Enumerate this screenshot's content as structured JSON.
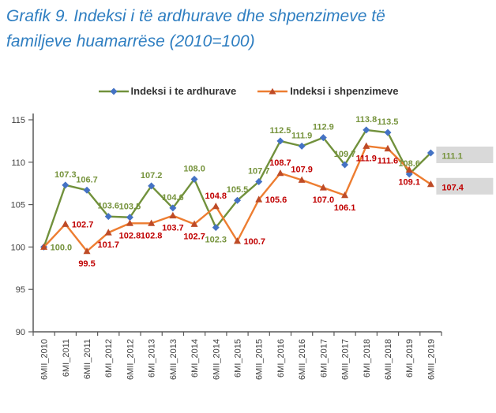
{
  "page": {
    "title": "Grafik 9. Indeksi i të ardhurave dhe shpenzimeve të familjeve huamarrëse (2010=100)",
    "title_color": "#2E7EC1"
  },
  "chart_data": {
    "type": "line",
    "title": "Grafik 9. Indeksi i të ardhurave dhe shpenzimeve të familjeve huamarrëse (2010=100)",
    "xlabel": "",
    "ylabel": "",
    "ylim": [
      90,
      115
    ],
    "ytick_step": 5,
    "grid": "off",
    "legend_position": "top-center",
    "axis_color": "#595959",
    "tick_label_color": "#404040",
    "highlight_box_color": "#D9D9D9",
    "categories": [
      "6MII_2010",
      "6MI_2011",
      "6MII_2011",
      "6MI_2012",
      "6MII_2012",
      "6MI_2013",
      "6MII_2013",
      "6MI_2014",
      "6MII_2014",
      "6MI_2015",
      "6MII_2015",
      "6MI_2016",
      "6MII_2016",
      "6MI_2017",
      "6MII_2017",
      "6MI_2018",
      "6MII_2018",
      "6MI_2019",
      "6MII_2019"
    ],
    "series": [
      {
        "name": "Indeksi i te ardhurave",
        "line_color": "#71913C",
        "marker": "diamond",
        "marker_color": "#4472C4",
        "label_color": "#76933C",
        "values": [
          100.0,
          107.3,
          106.7,
          103.6,
          103.5,
          107.2,
          104.6,
          108.0,
          102.3,
          105.5,
          107.7,
          112.5,
          111.9,
          112.9,
          109.7,
          113.8,
          113.5,
          108.6,
          111.1
        ],
        "label_positions": [
          "right",
          "above",
          "above",
          "above",
          "above",
          "above",
          "above",
          "above",
          "below",
          "above",
          "above",
          "above",
          "above",
          "above",
          "above",
          "above",
          "above",
          "above",
          "box-right"
        ]
      },
      {
        "name": "Indeksi i shpenzimeve",
        "line_color": "#ED7D31",
        "marker": "triangle",
        "marker_color": "#BE4B27",
        "label_color": "#C00000",
        "values": [
          100.0,
          102.7,
          99.5,
          101.7,
          102.8,
          102.8,
          103.7,
          102.7,
          104.8,
          100.7,
          105.6,
          108.7,
          107.9,
          107.0,
          106.1,
          111.9,
          111.6,
          109.1,
          107.4
        ],
        "label_positions": [
          "none",
          "right",
          "below",
          "below",
          "below",
          "below",
          "below",
          "below",
          "above",
          "right",
          "right",
          "above",
          "above",
          "below",
          "below",
          "below",
          "below",
          "below",
          "box-right"
        ]
      }
    ]
  }
}
